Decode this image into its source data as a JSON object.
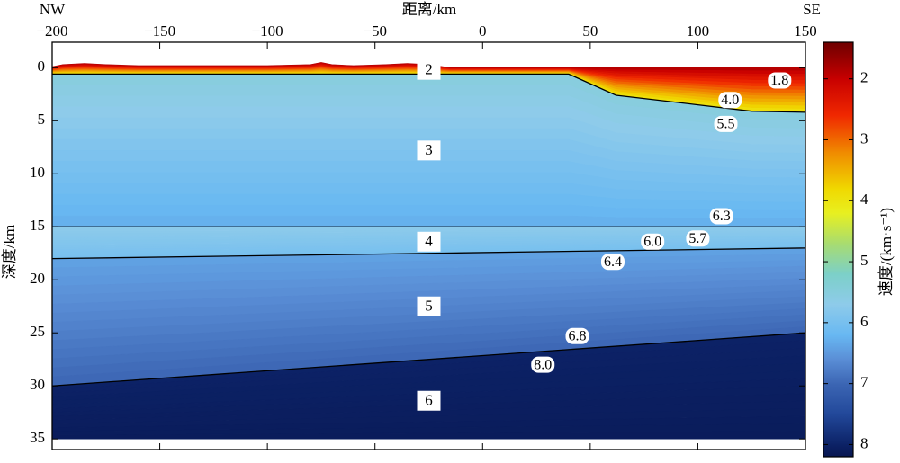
{
  "chart_data": {
    "type": "velocity_section",
    "title": "距离/km",
    "left_label": "NW",
    "right_label": "SE",
    "ylabel": "深度/km",
    "xlim": [
      -200,
      150
    ],
    "xticks": [
      {
        "value": -200,
        "label": "−200"
      },
      {
        "value": -150,
        "label": "−150"
      },
      {
        "value": -100,
        "label": "−100"
      },
      {
        "value": -50,
        "label": "−50"
      },
      0,
      50,
      100,
      150
    ],
    "ylim": [
      -2.4,
      36
    ],
    "y_inverted": true,
    "yticks": [
      0,
      5,
      10,
      15,
      20,
      25,
      30,
      35
    ],
    "boundaries": [
      {
        "x": [
          -200,
          -195,
          -185,
          -175,
          -160,
          -100,
          -80,
          -75,
          -70,
          -60,
          -45,
          -35,
          -25,
          -15,
          40,
          150
        ],
        "depth": [
          -0.1,
          -0.3,
          -0.4,
          -0.3,
          -0.2,
          -0.2,
          -0.3,
          -0.5,
          -0.3,
          -0.2,
          -0.3,
          -0.4,
          -0.3,
          0,
          0,
          0
        ],
        "line": false
      },
      {
        "x": [
          -200,
          40,
          62,
          100,
          125,
          150
        ],
        "depth": [
          0.6,
          0.6,
          2.6,
          3.5,
          4.1,
          4.2
        ],
        "line": true
      },
      {
        "x": [
          -200,
          150
        ],
        "depth": [
          15,
          15
        ],
        "line": true
      },
      {
        "x": [
          -200,
          150
        ],
        "depth": [
          18,
          17
        ],
        "line": true
      },
      {
        "x": [
          -200,
          150
        ],
        "depth": [
          30,
          25
        ],
        "line": true
      },
      {
        "x": [
          -200,
          150
        ],
        "depth": [
          35,
          35
        ],
        "line": false
      }
    ],
    "layers": [
      {
        "name": "2",
        "x": -25,
        "y": 0.2,
        "v_top": 1.8,
        "v_bottom": 4.0
      },
      {
        "name": "3",
        "x": -25,
        "y": 7.8,
        "v_top": 5.5,
        "v_bottom": 6.3
      },
      {
        "name": "4",
        "x": -25,
        "y": 16.4,
        "v_top": 5.7,
        "v_bottom": 6.0
      },
      {
        "name": "5",
        "x": -25,
        "y": 22.5,
        "v_top": 6.4,
        "v_bottom": 7.0
      },
      {
        "name": "6",
        "x": -25,
        "y": 31.4,
        "v_top": 8.0,
        "v_bottom": 8.1
      }
    ],
    "contour_labels": [
      {
        "x": 138,
        "y": 1.2,
        "value": 1.8
      },
      {
        "x": 115,
        "y": 3.05,
        "value": 4,
        "label": "4.0"
      },
      {
        "x": 113,
        "y": 5.3,
        "value": 5.5
      },
      {
        "x": 111,
        "y": 14.0,
        "value": 6.3
      },
      {
        "x": 79,
        "y": 16.4,
        "value": 6,
        "label": "6.0"
      },
      {
        "x": 100,
        "y": 16.1,
        "value": 5.7
      },
      {
        "x": 60.5,
        "y": 18.3,
        "value": 6.4
      },
      {
        "x": 44,
        "y": 25.3,
        "value": 6.8
      },
      {
        "x": 28,
        "y": 28.0,
        "value": 8,
        "label": "8.0"
      }
    ],
    "colorbar": {
      "label": "速度/(km·s⁻¹)",
      "lim": [
        1.4,
        8.2
      ],
      "ticks": [
        2,
        3,
        4,
        5,
        6,
        7,
        8
      ],
      "colormap": [
        [
          1.4,
          "#6e0000"
        ],
        [
          2,
          "#c80000"
        ],
        [
          2.6,
          "#f02800"
        ],
        [
          3.2,
          "#f08a00"
        ],
        [
          3.8,
          "#f0d800"
        ],
        [
          4.2,
          "#e8f020"
        ],
        [
          4.7,
          "#a8dc70"
        ],
        [
          5.2,
          "#7cd0c8"
        ],
        [
          5.7,
          "#8ecbea"
        ],
        [
          6.2,
          "#68b8f2"
        ],
        [
          6.6,
          "#5a8ed6"
        ],
        [
          7,
          "#3c66b4"
        ],
        [
          7.5,
          "#22489a"
        ],
        [
          8,
          "#0c2266"
        ],
        [
          8.2,
          "#081650"
        ]
      ]
    }
  }
}
